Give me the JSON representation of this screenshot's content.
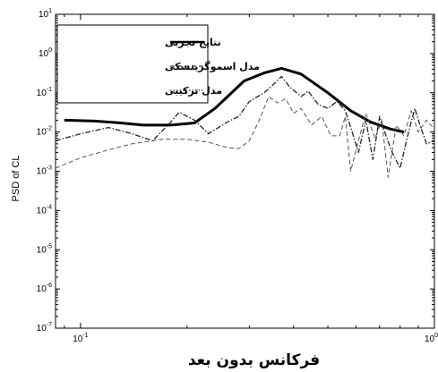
{
  "chart_data": {
    "type": "line",
    "xlabel": "فرکانس بدون بعد",
    "ylabel": "PSD of CL",
    "x_scale": "log",
    "y_scale": "log",
    "xlim": [
      0.085,
      1.0
    ],
    "ylim": [
      1e-07,
      10
    ],
    "grid": false,
    "legend_position": "top-left",
    "x_ticks": [
      {
        "base": "10",
        "exp": "-1"
      },
      {
        "base": "10",
        "exp": "0"
      }
    ],
    "y_ticks": [
      {
        "base": "10",
        "exp": "1"
      },
      {
        "base": "10",
        "exp": "0"
      },
      {
        "base": "10",
        "exp": "-1"
      },
      {
        "base": "10",
        "exp": "-2"
      },
      {
        "base": "10",
        "exp": "-3"
      },
      {
        "base": "10",
        "exp": "-4"
      },
      {
        "base": "10",
        "exp": "-5"
      },
      {
        "base": "10",
        "exp": "-6"
      },
      {
        "base": "10",
        "exp": "-7"
      }
    ],
    "series": [
      {
        "name": "نتایج تجربی",
        "style": "solid-thick",
        "color": "#000000",
        "points": [
          [
            0.09,
            0.02
          ],
          [
            0.11,
            0.019
          ],
          [
            0.13,
            0.017
          ],
          [
            0.15,
            0.015
          ],
          [
            0.18,
            0.015
          ],
          [
            0.21,
            0.017
          ],
          [
            0.24,
            0.04
          ],
          [
            0.29,
            0.2
          ],
          [
            0.33,
            0.32
          ],
          [
            0.37,
            0.42
          ],
          [
            0.42,
            0.3
          ],
          [
            0.5,
            0.1
          ],
          [
            0.58,
            0.035
          ],
          [
            0.66,
            0.018
          ],
          [
            0.75,
            0.012
          ],
          [
            0.82,
            0.01
          ]
        ]
      },
      {
        "name": "مدل اسموگرینسکی",
        "style": "dashed",
        "color": "#555555",
        "points": [
          [
            0.085,
            0.0012
          ],
          [
            0.1,
            0.0022
          ],
          [
            0.12,
            0.0035
          ],
          [
            0.14,
            0.005
          ],
          [
            0.17,
            0.0065
          ],
          [
            0.2,
            0.0065
          ],
          [
            0.23,
            0.0055
          ],
          [
            0.26,
            0.004
          ],
          [
            0.28,
            0.0038
          ],
          [
            0.3,
            0.006
          ],
          [
            0.32,
            0.02
          ],
          [
            0.34,
            0.08
          ],
          [
            0.36,
            0.055
          ],
          [
            0.38,
            0.07
          ],
          [
            0.4,
            0.03
          ],
          [
            0.42,
            0.04
          ],
          [
            0.45,
            0.015
          ],
          [
            0.48,
            0.025
          ],
          [
            0.51,
            0.008
          ],
          [
            0.54,
            0.008
          ],
          [
            0.56,
            0.025
          ],
          [
            0.58,
            0.001
          ],
          [
            0.61,
            0.006
          ],
          [
            0.64,
            0.03
          ],
          [
            0.68,
            0.007
          ],
          [
            0.71,
            0.02
          ],
          [
            0.74,
            0.0007
          ],
          [
            0.78,
            0.015
          ],
          [
            0.82,
            0.008
          ],
          [
            0.86,
            0.035
          ],
          [
            0.9,
            0.01
          ],
          [
            0.95,
            0.02
          ],
          [
            1.0,
            0.012
          ]
        ]
      },
      {
        "name": "مدل ترکیبی",
        "style": "dash-dot",
        "color": "#222222",
        "points": [
          [
            0.085,
            0.006
          ],
          [
            0.1,
            0.009
          ],
          [
            0.12,
            0.013
          ],
          [
            0.14,
            0.009
          ],
          [
            0.16,
            0.006
          ],
          [
            0.18,
            0.018
          ],
          [
            0.19,
            0.032
          ],
          [
            0.21,
            0.02
          ],
          [
            0.23,
            0.009
          ],
          [
            0.26,
            0.018
          ],
          [
            0.28,
            0.025
          ],
          [
            0.3,
            0.06
          ],
          [
            0.33,
            0.1
          ],
          [
            0.35,
            0.16
          ],
          [
            0.37,
            0.26
          ],
          [
            0.39,
            0.14
          ],
          [
            0.42,
            0.08
          ],
          [
            0.44,
            0.11
          ],
          [
            0.47,
            0.05
          ],
          [
            0.5,
            0.04
          ],
          [
            0.53,
            0.06
          ],
          [
            0.56,
            0.035
          ],
          [
            0.59,
            0.008
          ],
          [
            0.61,
            0.003
          ],
          [
            0.64,
            0.02
          ],
          [
            0.67,
            0.002
          ],
          [
            0.7,
            0.025
          ],
          [
            0.73,
            0.008
          ],
          [
            0.76,
            0.003
          ],
          [
            0.8,
            0.0012
          ],
          [
            0.84,
            0.008
          ],
          [
            0.88,
            0.04
          ],
          [
            0.91,
            0.015
          ],
          [
            0.95,
            0.005
          ],
          [
            1.0,
            0.006
          ]
        ]
      }
    ]
  }
}
